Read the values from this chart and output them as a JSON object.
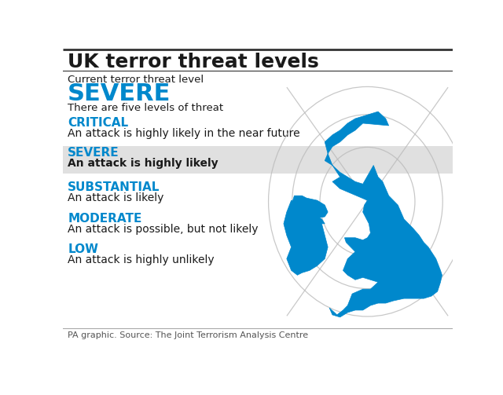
{
  "title": "UK terror threat levels",
  "title_fontsize": 18,
  "title_fontweight": "bold",
  "current_label": "Current terror threat level",
  "current_level": "SEVERE",
  "current_level_color": "#0088cc",
  "current_level_fontsize": 22,
  "five_levels_text": "There are five levels of threat",
  "levels": [
    {
      "name": "CRITICAL",
      "description": "An attack is highly likely in the near future",
      "highlight": false
    },
    {
      "name": "SEVERE",
      "description": "An attack is highly likely",
      "highlight": true
    },
    {
      "name": "SUBSTANTIAL",
      "description": "An attack is likely",
      "highlight": false
    },
    {
      "name": "MODERATE",
      "description": "An attack is possible, but not likely",
      "highlight": false
    },
    {
      "name": "LOW",
      "description": "An attack is highly unlikely",
      "highlight": false
    }
  ],
  "level_name_color": "#0088cc",
  "level_name_fontsize": 11,
  "level_desc_fontsize": 10,
  "highlight_color": "#e0e0e0",
  "footer": "PA graphic. Source: The Joint Terrorism Analysis Centre",
  "footer_fontsize": 8,
  "bg_color": "#ffffff",
  "text_color": "#1a1a1a",
  "map_color": "#0088cc",
  "radar_color": "#bbbbbb",
  "top_border_color": "#333333",
  "bottom_border_color": "#aaaaaa"
}
